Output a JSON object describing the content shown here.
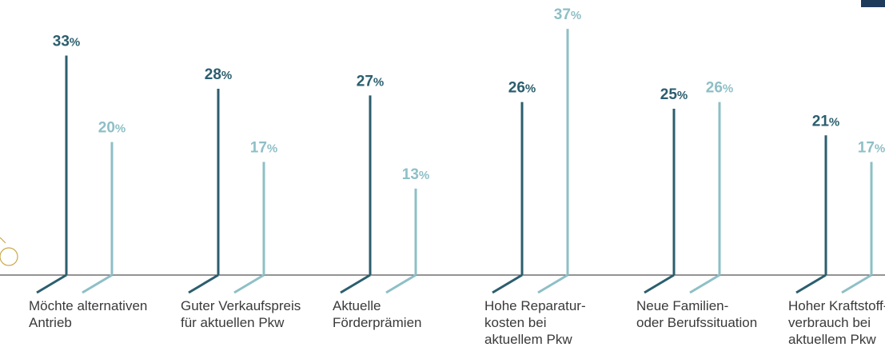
{
  "colors": {
    "dark": "#2b5e6e",
    "light": "#8ebfc6",
    "baseline": "#555555",
    "accent": "#c9a94a"
  },
  "chart_data": {
    "type": "bar",
    "categories": [
      "Möchte alternativen\nAntrieb",
      "Guter Verkaufspreis\nfür aktuellen Pkw",
      "Aktuelle\nFörderprämien",
      "Hohe Reparatur-\nkosten bei\naktuellem Pkw",
      "Neue Familien-\noder Berufssituation",
      "Hoher Kraftstoff-\nverbrauch bei\naktuellem Pkw"
    ],
    "series": [
      {
        "values": [
          33,
          28,
          27,
          26,
          25,
          21
        ]
      },
      {
        "values": [
          20,
          17,
          13,
          37,
          26,
          17
        ]
      }
    ],
    "unit": "%",
    "ylim": [
      0,
      37
    ],
    "grid": false,
    "legend": "none"
  }
}
